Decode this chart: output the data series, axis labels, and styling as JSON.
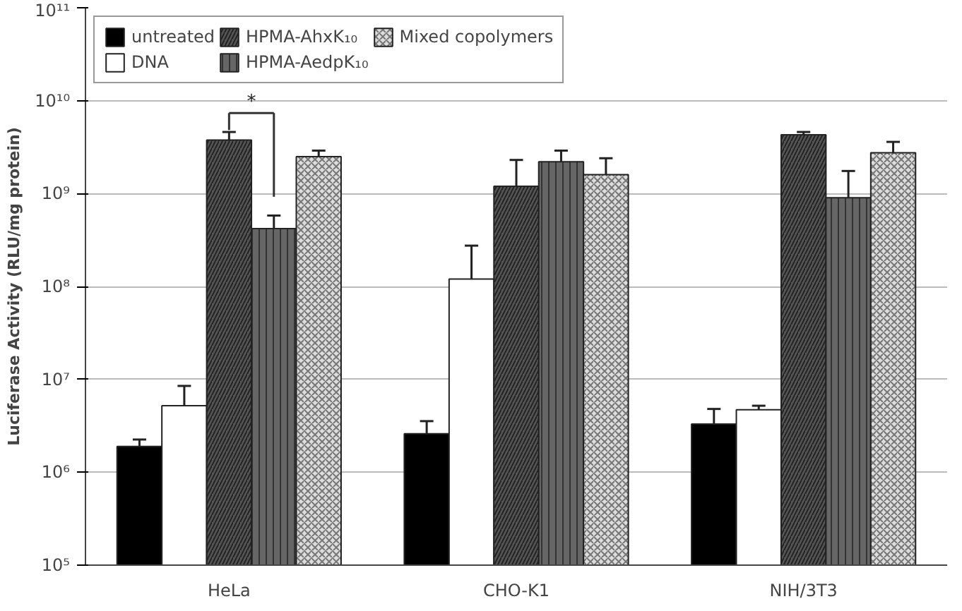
{
  "chart_data": {
    "type": "bar",
    "ylabel": "Luciferase Activity (RLU/mg protein)",
    "categories": [
      "HeLa",
      "CHO-K1",
      "NIH/3T3"
    ],
    "series": [
      {
        "name": "untreated",
        "color": "#000000",
        "values": [
          1900000,
          2600000,
          3300000
        ],
        "errors": [
          [
            1900000,
            2250000
          ],
          [
            2600000,
            3550000
          ],
          [
            3300000,
            4800000
          ]
        ]
      },
      {
        "name": "DNA",
        "color": "#ffffff",
        "values": [
          5200000,
          120000000,
          4700000
        ],
        "errors": [
          [
            5200000,
            8500000
          ],
          [
            120000000,
            275000000
          ],
          [
            4700000,
            5200000
          ]
        ]
      },
      {
        "name": "HPMA-AhxK₁₀",
        "color": "#555555",
        "values": [
          3760000000,
          1200000000,
          4300000000
        ],
        "errors": [
          [
            3760000000,
            4600000000
          ],
          [
            1200000000,
            2300000000
          ],
          [
            4300000000,
            4600000000
          ]
        ]
      },
      {
        "name": "HPMA-AedpK₁₀",
        "color": "#666666",
        "values": [
          420000000,
          2200000000,
          900000000
        ],
        "errors": [
          [
            420000000,
            580000000
          ],
          [
            2200000000,
            2900000000
          ],
          [
            900000000,
            1750000000
          ]
        ]
      },
      {
        "name": "Mixed copolymers",
        "color": "#dddddd",
        "values": [
          2500000000,
          1600000000,
          2750000000
        ],
        "errors": [
          [
            2500000000,
            2900000000
          ],
          [
            1600000000,
            2400000000
          ],
          [
            2750000000,
            3600000000
          ]
        ]
      }
    ],
    "log": "y",
    "ylim": [
      100000,
      100000000000
    ],
    "yticks": [
      {
        "value": 100000,
        "label": "10⁵"
      },
      {
        "value": 1000000,
        "label": "10⁶"
      },
      {
        "value": 10000000,
        "label": "10⁷"
      },
      {
        "value": 100000000,
        "label": "10⁸"
      },
      {
        "value": 1000000000,
        "label": "10⁹"
      },
      {
        "value": 10000000000,
        "label": "10¹⁰"
      },
      {
        "value": 100000000000,
        "label": "10¹¹"
      }
    ],
    "grid": "y",
    "legend": "top left",
    "annotations": [
      "*"
    ]
  }
}
